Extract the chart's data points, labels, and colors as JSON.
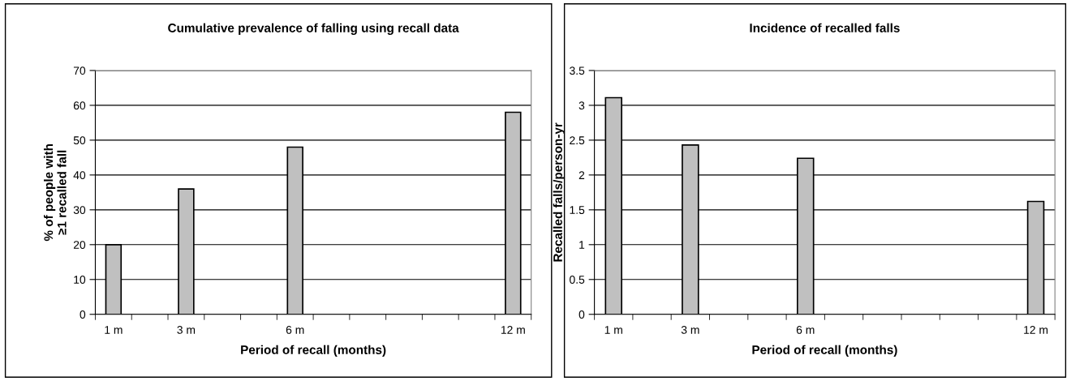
{
  "chart_data": [
    {
      "type": "bar",
      "title": "Cumulative prevalence of falling using recall data",
      "xlabel": "Period of recall (months)",
      "ylabel": "% of people with\n≥1 recalled fall",
      "categories": [
        "1 m",
        null,
        "3 m",
        null,
        null,
        "6 m",
        null,
        null,
        null,
        null,
        null,
        "12 m"
      ],
      "values": [
        20,
        null,
        36,
        null,
        null,
        48,
        null,
        null,
        null,
        null,
        null,
        58
      ],
      "color": "#c0c0c0",
      "ylim": [
        0,
        70
      ],
      "yticks": [
        0,
        10,
        20,
        30,
        40,
        50,
        60,
        70
      ],
      "grid": "y"
    },
    {
      "type": "bar",
      "title": "Incidence of recalled falls",
      "xlabel": "Period of recall (months)",
      "ylabel": "Recalled falls/person-yr",
      "categories": [
        "1 m",
        null,
        "3 m",
        null,
        null,
        "6 m",
        null,
        null,
        null,
        null,
        null,
        "12 m"
      ],
      "values": [
        3.11,
        null,
        2.43,
        null,
        null,
        2.24,
        null,
        null,
        null,
        null,
        null,
        1.62
      ],
      "color": "#c0c0c0",
      "ylim": [
        0,
        3.5
      ],
      "yticks": [
        0,
        0.5,
        1,
        1.5,
        2,
        2.5,
        3,
        3.5
      ],
      "grid": "y"
    }
  ]
}
